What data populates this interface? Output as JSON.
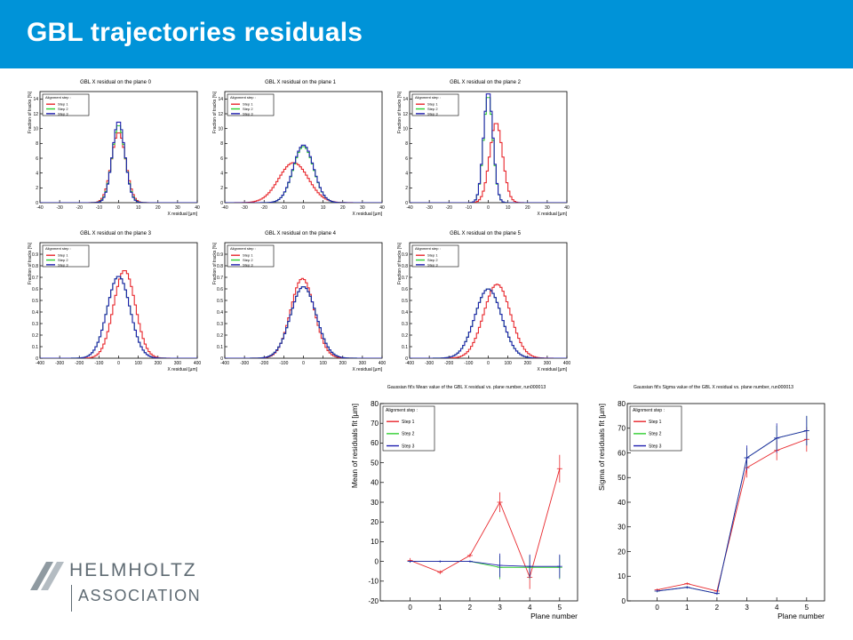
{
  "page_title": "GBL trajectories residuals",
  "logo": {
    "name": "HELMHOLTZ",
    "sub": "ASSOCIATION"
  },
  "colors": {
    "header": "#0093d8",
    "step1": "#e8272c",
    "step2": "#2fce2f",
    "step3": "#1f1fb0"
  },
  "chart_data": [
    {
      "type": "line",
      "title": "GBL X residual on the plane 0",
      "xlabel": "X residual [µm]",
      "ylabel": "Fraction of tracks [%]",
      "xlim": [
        -40,
        40
      ],
      "ylim": [
        0,
        15
      ],
      "xticks": [
        -40,
        -30,
        -20,
        -10,
        0,
        10,
        20,
        30,
        40
      ],
      "yticks": [
        0,
        2,
        4,
        6,
        8,
        10,
        12,
        14
      ],
      "legend": {
        "title": "Alignment step :",
        "entries": [
          "Step 1",
          "Step 2",
          "Step 3"
        ],
        "position": "top-left"
      },
      "series": [
        {
          "name": "Step 1",
          "color": "#e8272c",
          "shape": "gauss",
          "mean": 0,
          "sigma": 3.6,
          "peak": 9.5
        },
        {
          "name": "Step 2",
          "color": "#2fce2f",
          "shape": "gauss",
          "mean": 0,
          "sigma": 3.3,
          "peak": 10.5
        },
        {
          "name": "Step 3",
          "color": "#1f1fb0",
          "shape": "gauss",
          "mean": 0,
          "sigma": 3.2,
          "peak": 11
        }
      ]
    },
    {
      "type": "line",
      "title": "GBL X residual on the plane 1",
      "xlabel": "X residual [µm]",
      "ylabel": "Fraction of tracks [%]",
      "xlim": [
        -40,
        40
      ],
      "ylim": [
        0,
        15
      ],
      "xticks": [
        -40,
        -30,
        -20,
        -10,
        0,
        10,
        20,
        30,
        40
      ],
      "yticks": [
        0,
        2,
        4,
        6,
        8,
        10,
        12,
        14
      ],
      "legend": {
        "title": "Alignment step :",
        "entries": [
          "Step 1",
          "Step 2",
          "Step 3"
        ],
        "position": "top-left"
      },
      "series": [
        {
          "name": "Step 1",
          "color": "#e8272c",
          "shape": "gauss",
          "mean": -5,
          "sigma": 7.5,
          "peak": 5.4
        },
        {
          "name": "Step 2",
          "color": "#2fce2f",
          "shape": "gauss",
          "mean": 0,
          "sigma": 5.2,
          "peak": 7.6
        },
        {
          "name": "Step 3",
          "color": "#1f1fb0",
          "shape": "gauss",
          "mean": 0,
          "sigma": 5.2,
          "peak": 7.8
        }
      ]
    },
    {
      "type": "line",
      "title": "GBL X residual on the plane 2",
      "xlabel": "X residual [µm]",
      "ylabel": "Fraction of tracks [%]",
      "xlim": [
        -40,
        40
      ],
      "ylim": [
        0,
        15
      ],
      "xticks": [
        -40,
        -30,
        -20,
        -10,
        0,
        10,
        20,
        30,
        40
      ],
      "yticks": [
        0,
        2,
        4,
        6,
        8,
        10,
        12,
        14
      ],
      "legend": {
        "title": "Alignment step :",
        "entries": [
          "Step 1",
          "Step 2",
          "Step 3"
        ],
        "position": "top-left"
      },
      "series": [
        {
          "name": "Step 1",
          "color": "#e8272c",
          "shape": "gauss",
          "mean": 4,
          "sigma": 3.3,
          "peak": 10.8
        },
        {
          "name": "Step 2",
          "color": "#2fce2f",
          "shape": "gauss",
          "mean": 0,
          "sigma": 2.4,
          "peak": 14.5
        },
        {
          "name": "Step 3",
          "color": "#1f1fb0",
          "shape": "gauss",
          "mean": 0,
          "sigma": 2.4,
          "peak": 15
        }
      ]
    },
    {
      "type": "line",
      "title": "GBL X residual on the plane 3",
      "xlabel": "X residual [µm]",
      "ylabel": "Fraction of tracks [%]",
      "xlim": [
        -400,
        400
      ],
      "ylim": [
        0,
        1
      ],
      "xticks": [
        -400,
        -300,
        -200,
        -100,
        0,
        100,
        200,
        300,
        400
      ],
      "yticks": [
        0,
        0.1,
        0.2,
        0.3,
        0.4,
        0.5,
        0.6,
        0.7,
        0.8,
        0.9
      ],
      "legend": {
        "title": "Alignment step :",
        "entries": [
          "Step 1",
          "Step 2",
          "Step 3"
        ],
        "position": "top-left"
      },
      "series": [
        {
          "name": "Step 1",
          "color": "#e8272c",
          "shape": "gauss",
          "mean": 30,
          "sigma": 55,
          "peak": 0.76
        },
        {
          "name": "Step 2",
          "color": "#2fce2f",
          "shape": "gauss",
          "mean": 0,
          "sigma": 58,
          "peak": 0.71
        },
        {
          "name": "Step 3",
          "color": "#1f1fb0",
          "shape": "gauss",
          "mean": 0,
          "sigma": 58,
          "peak": 0.71
        }
      ]
    },
    {
      "type": "line",
      "title": "GBL X residual on the plane 4",
      "xlabel": "X residual [µm]",
      "ylabel": "Fraction of tracks [%]",
      "xlim": [
        -400,
        400
      ],
      "ylim": [
        0,
        1
      ],
      "xticks": [
        -400,
        -300,
        -200,
        -100,
        0,
        100,
        200,
        300,
        400
      ],
      "yticks": [
        0,
        0.1,
        0.2,
        0.3,
        0.4,
        0.5,
        0.6,
        0.7,
        0.8,
        0.9
      ],
      "legend": {
        "title": "Alignment step :",
        "entries": [
          "Step 1",
          "Step 2",
          "Step 3"
        ],
        "position": "top-left"
      },
      "series": [
        {
          "name": "Step 1",
          "color": "#e8272c",
          "shape": "gauss",
          "mean": -5,
          "sigma": 60,
          "peak": 0.69
        },
        {
          "name": "Step 2",
          "color": "#2fce2f",
          "shape": "gauss",
          "mean": 0,
          "sigma": 65,
          "peak": 0.62
        },
        {
          "name": "Step 3",
          "color": "#1f1fb0",
          "shape": "gauss",
          "mean": 0,
          "sigma": 65,
          "peak": 0.62
        }
      ]
    },
    {
      "type": "line",
      "title": "GBL X residual on the plane 5",
      "xlabel": "X residual [µm]",
      "ylabel": "Fraction of tracks [%]",
      "xlim": [
        -400,
        400
      ],
      "ylim": [
        0,
        1
      ],
      "xticks": [
        -400,
        -300,
        -200,
        -100,
        0,
        100,
        200,
        300,
        400
      ],
      "yticks": [
        0,
        0.1,
        0.2,
        0.3,
        0.4,
        0.5,
        0.6,
        0.7,
        0.8,
        0.9
      ],
      "legend": {
        "title": "Alignment step :",
        "entries": [
          "Step 1",
          "Step 2",
          "Step 3"
        ],
        "position": "top-left"
      },
      "series": [
        {
          "name": "Step 1",
          "color": "#e8272c",
          "shape": "gauss",
          "mean": 45,
          "sigma": 68,
          "peak": 0.64
        },
        {
          "name": "Step 2",
          "color": "#2fce2f",
          "shape": "gauss",
          "mean": 0,
          "sigma": 68,
          "peak": 0.6
        },
        {
          "name": "Step 3",
          "color": "#1f1fb0",
          "shape": "gauss",
          "mean": 0,
          "sigma": 68,
          "peak": 0.6
        }
      ]
    },
    {
      "type": "scatter",
      "title": "Gaussian fit's Mean value of the GBL X residual vs. plane number, run000013",
      "xlabel": "Plane number",
      "ylabel": "Mean of residuals fit [µm]",
      "xlim": [
        -1,
        5.6
      ],
      "ylim": [
        -20,
        80
      ],
      "xticks": [
        0,
        1,
        2,
        3,
        4,
        5
      ],
      "yticks": [
        -20,
        -10,
        0,
        10,
        20,
        30,
        40,
        50,
        60,
        70,
        80
      ],
      "legend": {
        "title": "Alignment step :",
        "entries": [
          "Step 1",
          "Step 2",
          "Step 3"
        ],
        "position": "top-left"
      },
      "x": [
        0,
        1,
        2,
        3,
        4,
        5
      ],
      "series": [
        {
          "name": "Step 1",
          "color": "#e8272c",
          "values": [
            0.5,
            -5.5,
            3,
            30,
            -8,
            47
          ],
          "errors": [
            1.2,
            1,
            1,
            5,
            6,
            7
          ]
        },
        {
          "name": "Step 2",
          "color": "#2fce2f",
          "values": [
            0,
            0,
            0,
            -3,
            -3,
            -3
          ],
          "errors": [
            0.5,
            0.5,
            0.5,
            6,
            6,
            6
          ]
        },
        {
          "name": "Step 3",
          "color": "#1f1fb0",
          "values": [
            0,
            0,
            0,
            -2,
            -2.5,
            -2.5
          ],
          "errors": [
            0.5,
            0.5,
            0.5,
            6,
            6,
            6
          ]
        }
      ]
    },
    {
      "type": "scatter",
      "title": "Gaussian fit's Sigma value of the GBL X residual vs. plane number, run000013",
      "xlabel": "Plane number",
      "ylabel": "Sigma of residuals fit [µm]",
      "xlim": [
        -1,
        5.6
      ],
      "ylim": [
        0,
        80
      ],
      "xticks": [
        0,
        1,
        2,
        3,
        4,
        5
      ],
      "yticks": [
        0,
        10,
        20,
        30,
        40,
        50,
        60,
        70,
        80
      ],
      "legend": {
        "title": "Alignment step :",
        "entries": [
          "Step 1",
          "Step 2",
          "Step 3"
        ],
        "position": "top-left"
      },
      "x": [
        0,
        1,
        2,
        3,
        4,
        5
      ],
      "series": [
        {
          "name": "Step 1",
          "color": "#e8272c",
          "values": [
            4.5,
            7,
            4,
            54,
            61,
            65.5
          ],
          "errors": [
            0.5,
            0.5,
            0.5,
            4,
            4,
            5
          ]
        },
        {
          "name": "Step 2",
          "color": "#2fce2f",
          "values": [
            4,
            5.5,
            3,
            58,
            66,
            69
          ],
          "errors": [
            0.5,
            0.5,
            0.5,
            4,
            5,
            6
          ]
        },
        {
          "name": "Step 3",
          "color": "#1f1fb0",
          "values": [
            4,
            5.5,
            3,
            58,
            66,
            69
          ],
          "errors": [
            0.5,
            0.5,
            0.5,
            5,
            6,
            6
          ]
        }
      ]
    }
  ]
}
